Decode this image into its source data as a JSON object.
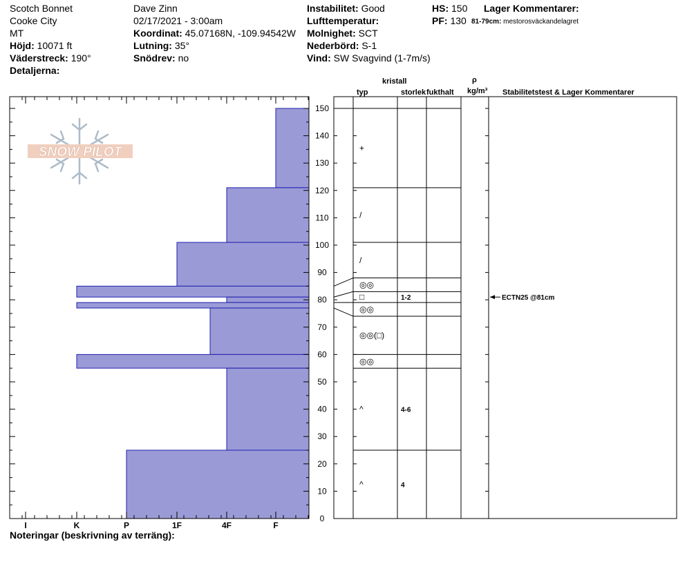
{
  "header": {
    "location": "Scotch Bonnet",
    "area": "Cooke City",
    "state": "MT",
    "elevation_label": "Höjd:",
    "elevation_value": "10071 ft",
    "aspect_label": "Väderstreck:",
    "aspect_value": "190°",
    "details_label": "Detaljerna:",
    "observer": "Dave Zinn",
    "datetime": "02/17/2021 - 3:00am",
    "coord_label": "Koordinat:",
    "coord_value": "45.07168N, -109.94542W",
    "slope_label": "Lutning:",
    "slope_value": "35°",
    "blowing_label": "Snödrev:",
    "blowing_value": "no",
    "instability_label": "Instabilitet:",
    "instability_value": "Good",
    "airtemp_label": "Lufttemperatur:",
    "sky_label": "Molnighet:",
    "sky_value": "SCT",
    "precip_label": "Nederbörd:",
    "precip_value": "S-1",
    "wind_label": "Vind:",
    "wind_value": "SW  Svagvind (1-7m/s)",
    "hs_label": "HS:",
    "hs_value": "150",
    "pf_label": "PF:",
    "pf_value": "130",
    "layer_comments_label": "Lager Kommentarer:",
    "pf_comment_range": "81-79cm:",
    "pf_comment_text": "mestorosväckandelagret"
  },
  "columns": {
    "crystal": "kristall",
    "type": "typ",
    "size": "storlek",
    "moisture": "fukthalt",
    "rho": "ρ",
    "density_unit": "kg/m³",
    "stability": "Stabilitetstest & Lager Kommentarer"
  },
  "notes_label": "Noteringar (beskrivning av terräng):",
  "logo_text": "SNOW PILOT",
  "colors": {
    "fill": "#9a9ad6",
    "edge": "#2020b0"
  },
  "chart_data": {
    "type": "bar",
    "hardness_ticks": [
      "I",
      "K",
      "P",
      "1F",
      "4F",
      "F"
    ],
    "hardness_order_left_to_right": [
      "I",
      "K",
      "P",
      "1F",
      "4F",
      "F"
    ],
    "height_ticks": [
      0,
      10,
      20,
      30,
      40,
      50,
      60,
      70,
      80,
      90,
      100,
      110,
      120,
      130,
      140,
      150
    ],
    "ylim": [
      0,
      150
    ],
    "hardness_layers": [
      {
        "top": 150,
        "bottom": 121,
        "hardness": "F"
      },
      {
        "top": 121,
        "bottom": 101,
        "hardness": "4F"
      },
      {
        "top": 101,
        "bottom": 85,
        "hardness": "1F"
      },
      {
        "top": 85,
        "bottom": 81,
        "hardness": "K"
      },
      {
        "top": 81,
        "bottom": 79,
        "hardness": "4F"
      },
      {
        "top": 79,
        "bottom": 77,
        "hardness": "K"
      },
      {
        "top": 77,
        "bottom": 60,
        "hardness": "4F-"
      },
      {
        "top": 60,
        "bottom": 55,
        "hardness": "K"
      },
      {
        "top": 55,
        "bottom": 25,
        "hardness": "4F"
      },
      {
        "top": 25,
        "bottom": 0,
        "hardness": "P"
      }
    ],
    "strat_layers": [
      {
        "top": 150,
        "bottom": 121,
        "grain": "+",
        "size": ""
      },
      {
        "top": 121,
        "bottom": 101,
        "grain": "/",
        "size": ""
      },
      {
        "top": 101,
        "bottom": 88,
        "grain": "/",
        "size": ""
      },
      {
        "top": 88,
        "bottom": 83,
        "grain": "◎◎",
        "size": ""
      },
      {
        "top": 83,
        "bottom": 79,
        "grain": "□",
        "size": "1-2"
      },
      {
        "top": 79,
        "bottom": 74,
        "grain": "◎◎",
        "size": ""
      },
      {
        "top": 74,
        "bottom": 60,
        "grain": "◎◎(□)",
        "size": ""
      },
      {
        "top": 60,
        "bottom": 55,
        "grain": "◎◎",
        "size": ""
      },
      {
        "top": 55,
        "bottom": 25,
        "grain": "^",
        "size": "4-6"
      },
      {
        "top": 25,
        "bottom": 0,
        "grain": "^",
        "size": "4"
      }
    ],
    "stability_tests": [
      {
        "height": 81,
        "label": "ECTN25 @81cm"
      }
    ]
  }
}
